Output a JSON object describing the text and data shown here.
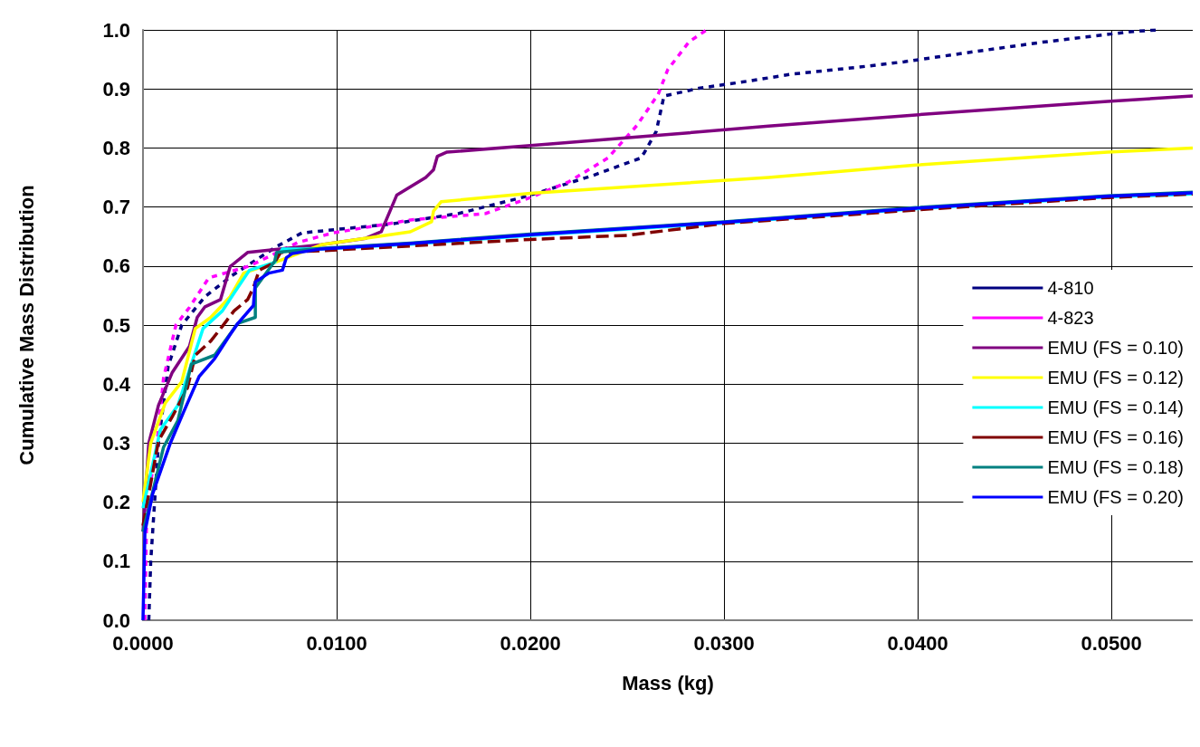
{
  "chart_data": {
    "type": "line",
    "xlabel": "Mass (kg)",
    "ylabel": "Cumulative Mass Distribution",
    "xlim": [
      0,
      0.0542
    ],
    "ylim": [
      0,
      1
    ],
    "xticks": [
      {
        "value": 0,
        "label": "0.0000"
      },
      {
        "value": 0.01,
        "label": "0.0100"
      },
      {
        "value": 0.02,
        "label": "0.0200"
      },
      {
        "value": 0.03,
        "label": "0.0300"
      },
      {
        "value": 0.04,
        "label": "0.0400"
      },
      {
        "value": 0.05,
        "label": "0.0500"
      }
    ],
    "yticks": [
      {
        "value": 0,
        "label": "0.0"
      },
      {
        "value": 0.1,
        "label": "0.1"
      },
      {
        "value": 0.2,
        "label": "0.2"
      },
      {
        "value": 0.3,
        "label": "0.3"
      },
      {
        "value": 0.4,
        "label": "0.4"
      },
      {
        "value": 0.5,
        "label": "0.5"
      },
      {
        "value": 0.6,
        "label": "0.6"
      },
      {
        "value": 0.7,
        "label": "0.7"
      },
      {
        "value": 0.8,
        "label": "0.8"
      },
      {
        "value": 0.9,
        "label": "0.9"
      },
      {
        "value": 1.0,
        "label": "1.0"
      }
    ],
    "grid": true,
    "legend": "right",
    "marker": "none",
    "series": [
      {
        "name": "4-810",
        "color": "#000080",
        "line_style": "dotted",
        "x": [
          0.0003,
          0.0004,
          0.0008,
          0.0013,
          0.002,
          0.0032,
          0.0046,
          0.0069,
          0.0082,
          0.0103,
          0.0128,
          0.0163,
          0.0198,
          0.0232,
          0.0257,
          0.0259,
          0.0265,
          0.0269,
          0.0287,
          0.0312,
          0.0335,
          0.037,
          0.0393,
          0.0429,
          0.0464,
          0.0487,
          0.051,
          0.0524
        ],
        "values": [
          0,
          0.1,
          0.3,
          0.43,
          0.5,
          0.548,
          0.584,
          0.633,
          0.656,
          0.663,
          0.671,
          0.689,
          0.718,
          0.753,
          0.783,
          0.793,
          0.828,
          0.888,
          0.901,
          0.913,
          0.925,
          0.937,
          0.946,
          0.963,
          0.979,
          0.988,
          0.997,
          1.0
        ]
      },
      {
        "name": "4-823",
        "color": "#ff00ff",
        "line_style": "dotted",
        "x": [
          0.0001,
          0.0002,
          0.0007,
          0.00106,
          0.0017,
          0.0024,
          0.0034,
          0.0055,
          0.008,
          0.0098,
          0.0138,
          0.0177,
          0.02,
          0.022,
          0.024,
          0.0255,
          0.0266,
          0.0271,
          0.0282,
          0.0291
        ],
        "values": [
          0,
          0.2,
          0.29,
          0.41,
          0.5,
          0.53,
          0.58,
          0.6,
          0.64,
          0.656,
          0.678,
          0.689,
          0.716,
          0.743,
          0.783,
          0.838,
          0.891,
          0.933,
          0.98,
          1.0
        ]
      },
      {
        "name": "EMU (FS = 0.10)",
        "color": "#800080",
        "line_style": "solid",
        "x": [
          0,
          0.0001,
          0.0003,
          0.0008,
          0.0015,
          0.0024,
          0.0028,
          0.0032,
          0.004,
          0.0045,
          0.0054,
          0.0092,
          0.0115,
          0.0123,
          0.0131,
          0.0146,
          0.015,
          0.0152,
          0.0157,
          0.02,
          0.0261,
          0.0323,
          0.0399,
          0.0498,
          0.0542
        ],
        "values": [
          0.15,
          0.2,
          0.3,
          0.364,
          0.419,
          0.464,
          0.513,
          0.531,
          0.543,
          0.599,
          0.623,
          0.636,
          0.647,
          0.658,
          0.72,
          0.75,
          0.763,
          0.786,
          0.793,
          0.804,
          0.82,
          0.837,
          0.856,
          0.879,
          0.888
        ]
      },
      {
        "name": "EMU (FS = 0.12)",
        "color": "#ffff00",
        "line_style": "solid",
        "x": [
          0,
          0.0004,
          0.00115,
          0.002,
          0.0027,
          0.0035,
          0.0045,
          0.0052,
          0.0068,
          0.0092,
          0.0138,
          0.0149,
          0.015,
          0.0154,
          0.02,
          0.0323,
          0.0399,
          0.0498,
          0.0542
        ],
        "values": [
          0.2,
          0.3,
          0.368,
          0.404,
          0.494,
          0.513,
          0.548,
          0.588,
          0.606,
          0.636,
          0.658,
          0.675,
          0.693,
          0.709,
          0.723,
          0.75,
          0.771,
          0.793,
          0.8
        ]
      },
      {
        "name": "EMU (FS = 0.14)",
        "color": "#00ffff",
        "line_style": "solid",
        "x": [
          0,
          0.0009,
          0.0018,
          0.0025,
          0.0031,
          0.0041,
          0.0047,
          0.0055,
          0.0068,
          0.0072,
          0.0092,
          0.0138,
          0.02,
          0.03,
          0.0399,
          0.0498,
          0.0542
        ],
        "values": [
          0.19,
          0.323,
          0.364,
          0.434,
          0.494,
          0.524,
          0.554,
          0.593,
          0.606,
          0.629,
          0.629,
          0.637,
          0.652,
          0.673,
          0.697,
          0.717,
          0.722
        ]
      },
      {
        "name": "EMU (FS = 0.16)",
        "color": "#800000",
        "line_style": "dashed",
        "x": [
          0,
          0.0008,
          0.0015,
          0.0023,
          0.0027,
          0.0035,
          0.0041,
          0.0047,
          0.0054,
          0.0057,
          0.006,
          0.0068,
          0.0071,
          0.0092,
          0.0138,
          0.02,
          0.025,
          0.03,
          0.0399,
          0.0498,
          0.0542
        ],
        "values": [
          0.16,
          0.304,
          0.344,
          0.394,
          0.449,
          0.473,
          0.498,
          0.524,
          0.543,
          0.563,
          0.593,
          0.606,
          0.623,
          0.626,
          0.634,
          0.645,
          0.652,
          0.672,
          0.695,
          0.716,
          0.722
        ]
      },
      {
        "name": "EMU (FS = 0.18)",
        "color": "#008080",
        "line_style": "solid",
        "x": [
          0,
          0.00106,
          0.0018,
          0.0025,
          0.0037,
          0.0049,
          0.0058,
          0.0058,
          0.0068,
          0.0069,
          0.0092,
          0.0138,
          0.02,
          0.03,
          0.0399,
          0.0498,
          0.0542
        ],
        "values": [
          0.15,
          0.293,
          0.338,
          0.434,
          0.449,
          0.503,
          0.513,
          0.563,
          0.608,
          0.623,
          0.63,
          0.639,
          0.654,
          0.675,
          0.699,
          0.719,
          0.725
        ]
      },
      {
        "name": "EMU (FS = 0.20)",
        "color": "#0000ff",
        "line_style": "solid",
        "x": [
          0,
          0.0001,
          0.0005,
          0.0014,
          0.0021,
          0.0029,
          0.0037,
          0.0045,
          0.0049,
          0.0057,
          0.0058,
          0.0065,
          0.0072,
          0.0074,
          0.0077,
          0.0092,
          0.0138,
          0.02,
          0.03,
          0.0399,
          0.0498,
          0.0542
        ],
        "values": [
          0,
          0.15,
          0.214,
          0.299,
          0.353,
          0.413,
          0.443,
          0.484,
          0.503,
          0.533,
          0.573,
          0.588,
          0.593,
          0.614,
          0.621,
          0.629,
          0.638,
          0.653,
          0.674,
          0.698,
          0.718,
          0.724
        ]
      }
    ]
  }
}
